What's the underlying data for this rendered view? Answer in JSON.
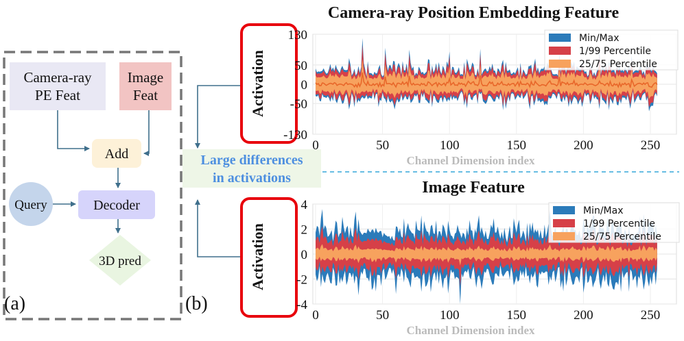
{
  "panel_a": {
    "label": "(a)",
    "boxes": {
      "camera_pe": [
        "Camera-ray",
        "PE Feat"
      ],
      "image_feat": [
        "Image",
        "Feat"
      ],
      "add": "Add",
      "query": "Query",
      "decoder": "Decoder",
      "pred": "3D pred"
    },
    "colors": {
      "camera_pe": "#e9e8f4",
      "image_feat": "#f2c4c3",
      "add": "#fdf1d8",
      "query": "#c4d5eb",
      "decoder": "#d6d4fb",
      "pred": "#e9f5e1",
      "arrow": "#3f6f8c",
      "dashed_border": "#777777"
    }
  },
  "panel_b": {
    "label": "(b)",
    "callout": [
      "Large differences",
      "in activations"
    ],
    "callout_color": "#4d8fe0",
    "callout_bg": "#eef6e7",
    "highlight_color": "#e8000b"
  },
  "chart_data": [
    {
      "type": "area",
      "title": "Camera-ray Position Embedding Feature",
      "xlabel": "Channel Dimension index",
      "ylabel": "Activation",
      "xlim": [
        0,
        256
      ],
      "ylim": [
        -130,
        130
      ],
      "xticks": [
        "0",
        "50",
        "100",
        "150",
        "200",
        "250"
      ],
      "yticks": [
        "130",
        "50",
        "0",
        "-50",
        "-130"
      ],
      "ytick_values": [
        130,
        50,
        0,
        -50,
        -130
      ],
      "series": [
        {
          "name": "Min/Max",
          "color": "#2b7bba"
        },
        {
          "name": "1/99 Percentile",
          "color": "#d64048"
        },
        {
          "name": "25/75 Percentile",
          "color": "#f7a25e"
        }
      ],
      "legend": "top-right",
      "band_profile": {
        "points": 256,
        "minmax_amp": 55,
        "p1_ratio": 0.85,
        "p25_ratio": 0.55,
        "peaks": [
          [
            35,
            120
          ],
          [
            52,
            95
          ],
          [
            70,
            90
          ],
          [
            100,
            85
          ],
          [
            123,
            92
          ],
          [
            182,
            80
          ],
          [
            212,
            88
          ],
          [
            236,
            75
          ]
        ]
      }
    },
    {
      "type": "area",
      "title": "Image Feature",
      "xlabel": "Channel Dimension index",
      "ylabel": "Activation",
      "xlim": [
        0,
        256
      ],
      "ylim": [
        -4,
        4
      ],
      "xticks": [
        "0",
        "50",
        "100",
        "150",
        "200",
        "250"
      ],
      "yticks": [
        "4",
        "2",
        "0",
        "-2",
        "-4"
      ],
      "ytick_values": [
        4,
        2,
        0,
        -2,
        -4
      ],
      "series": [
        {
          "name": "Min/Max",
          "color": "#2b7bba"
        },
        {
          "name": "1/99 Percentile",
          "color": "#d64048"
        },
        {
          "name": "25/75 Percentile",
          "color": "#f7a25e"
        }
      ],
      "legend": "top-right",
      "band_profile": {
        "points": 256,
        "minmax_amp": 2.6,
        "p1_ratio": 0.62,
        "p25_ratio": 0.22,
        "peaks": [
          [
            5,
            3.6
          ],
          [
            108,
            -4.2
          ],
          [
            30,
            3.4
          ],
          [
            175,
            3.5
          ],
          [
            245,
            3.2
          ],
          [
            60,
            -3.2
          ],
          [
            200,
            -3.1
          ]
        ]
      }
    }
  ]
}
